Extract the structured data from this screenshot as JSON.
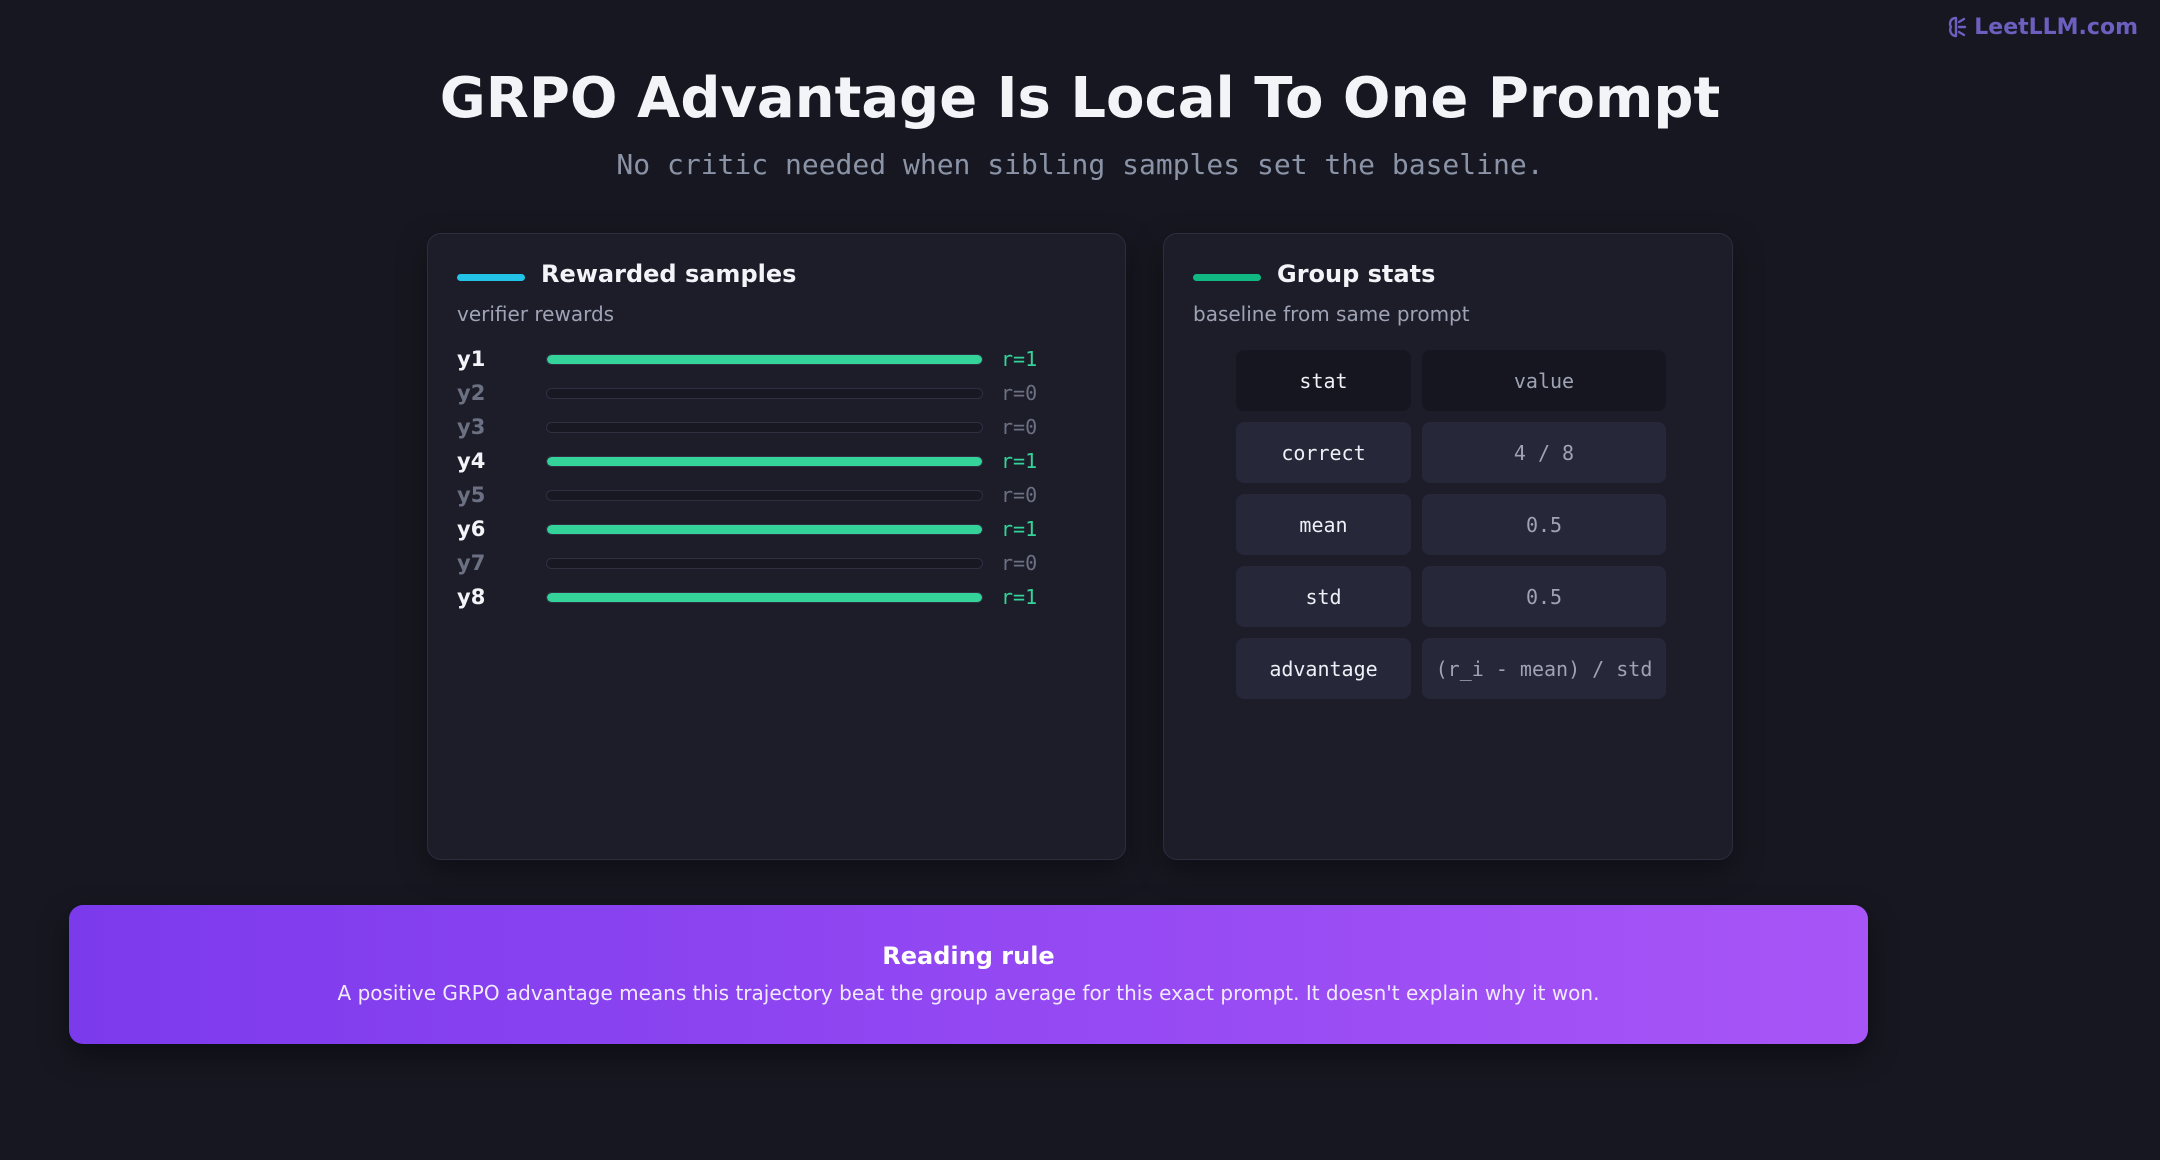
{
  "header": {
    "logo": "LeetLLM.com",
    "title": "GRPO Advantage Is Local To One Prompt",
    "subtitle": "No critic needed when sibling samples set the baseline."
  },
  "panels": [
    {
      "title": "Rewarded samples",
      "subtitle": "verifier rewards"
    },
    {
      "title": "Group stats",
      "subtitle": "baseline from same prompt"
    }
  ],
  "samples": {
    "labels": [
      "y1",
      "y2",
      "y3",
      "y4",
      "y5",
      "y6",
      "y7",
      "y8"
    ],
    "values": [
      1,
      0,
      0,
      1,
      0,
      1,
      0,
      1
    ],
    "value_labels": [
      "r=1",
      "r=0",
      "r=0",
      "r=1",
      "r=0",
      "r=1",
      "r=0",
      "r=1"
    ]
  },
  "table": {
    "header": [
      "stat",
      "value"
    ],
    "rows": [
      [
        "correct",
        "4 / 8"
      ],
      [
        "mean",
        "0.5"
      ],
      [
        "std",
        "0.5"
      ],
      [
        "advantage",
        "(r_i - mean) / std"
      ]
    ]
  },
  "callout": {
    "title": "Reading rule",
    "text": "A positive GRPO advantage means this trajectory beat the group average for this exact prompt. It doesn't explain why it won."
  }
}
